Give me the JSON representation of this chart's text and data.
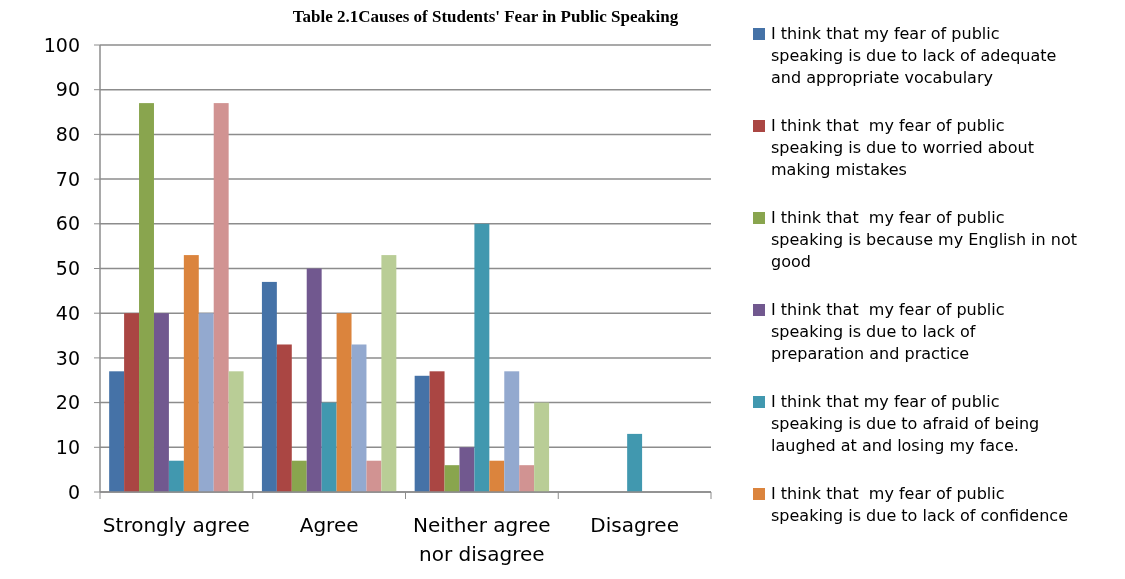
{
  "chart_data": {
    "type": "bar",
    "title": "Table 2.1Causes of Students' Fear in Public Speaking",
    "categories": [
      "Strongly agree",
      "Agree",
      "Neither agree nor disagree",
      "Disagree"
    ],
    "series": [
      {
        "name": "I think that my fear of public speaking is due to lack of adequate and appropriate vocabulary",
        "color": "#4572a7",
        "values": [
          27,
          47,
          26,
          0
        ]
      },
      {
        "name": "I think that  my fear of public speaking is due to worried about making mistakes",
        "color": "#aa4643",
        "values": [
          40,
          33,
          27,
          0
        ]
      },
      {
        "name": "I think that  my fear of public speaking is because my English in not good",
        "color": "#89a54e",
        "values": [
          87,
          7,
          6,
          0
        ]
      },
      {
        "name": "I think that  my fear of public speaking is due to lack of preparation and practice",
        "color": "#71588f",
        "values": [
          40,
          50,
          10,
          0
        ]
      },
      {
        "name": "I think that my fear of public speaking is due to afraid of being laughed at and losing my face.",
        "color": "#4198af",
        "values": [
          7,
          20,
          60,
          13
        ]
      },
      {
        "name": "I think that  my fear of public speaking is due to lack of confidence",
        "color": "#db843d",
        "values": [
          53,
          40,
          7,
          0
        ]
      },
      {
        "color": "#93a9cf",
        "values": [
          40,
          33,
          27,
          0
        ]
      },
      {
        "color": "#d19392",
        "values": [
          87,
          7,
          6,
          0
        ]
      },
      {
        "color": "#b9cd96",
        "values": [
          27,
          53,
          20,
          0
        ]
      }
    ],
    "ylim": [
      0,
      100
    ],
    "yticks": [
      0,
      10,
      20,
      30,
      40,
      50,
      60,
      70,
      80,
      90,
      100
    ],
    "grid": "y",
    "legend": "right"
  }
}
